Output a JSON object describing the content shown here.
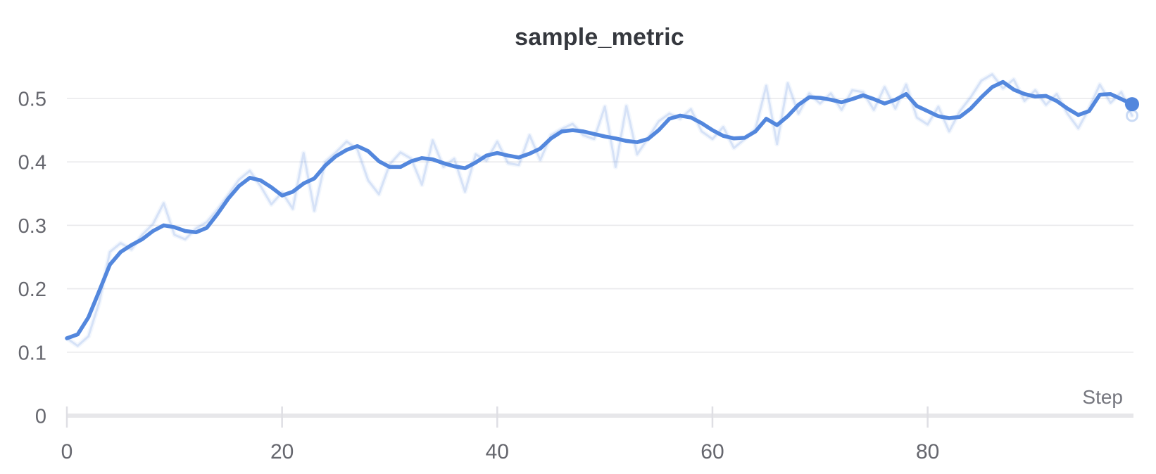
{
  "chart_data": {
    "type": "line",
    "title": "sample_metric",
    "xlabel": "Step",
    "ylabel": "",
    "grid": "horizontal",
    "legend": "none",
    "xlim": [
      0,
      100
    ],
    "ylim": [
      0,
      0.55
    ],
    "xticks": [
      0,
      20,
      40,
      60,
      80
    ],
    "yticks": [
      0,
      0.1,
      0.2,
      0.3,
      0.4,
      0.5
    ],
    "end_point_markers": true,
    "colors": {
      "line": "#5387dd",
      "raw_line_rgba": "83,135,221",
      "raw_opacity": 0.18,
      "grid": "#e9e9ec",
      "axis_bar": "#e7e7ea",
      "tick": "#dfdfe4",
      "tick_label": "#66676e",
      "axis_title": "#75767e",
      "title": "#35383e",
      "background": "#ffffff"
    },
    "x": [
      0,
      1,
      2,
      3,
      4,
      5,
      6,
      7,
      8,
      9,
      10,
      11,
      12,
      13,
      14,
      15,
      16,
      17,
      18,
      19,
      20,
      21,
      22,
      23,
      24,
      25,
      26,
      27,
      28,
      29,
      30,
      31,
      32,
      33,
      34,
      35,
      36,
      37,
      38,
      39,
      40,
      41,
      42,
      43,
      44,
      45,
      46,
      47,
      48,
      49,
      50,
      51,
      52,
      53,
      54,
      55,
      56,
      57,
      58,
      59,
      60,
      61,
      62,
      63,
      64,
      65,
      66,
      67,
      68,
      69,
      70,
      71,
      72,
      73,
      74,
      75,
      76,
      77,
      78,
      79,
      80,
      81,
      82,
      83,
      84,
      85,
      86,
      87,
      88,
      89,
      90,
      91,
      92,
      93,
      94,
      95,
      96,
      97,
      98,
      99
    ],
    "series": [
      {
        "name": "sample_metric (raw)",
        "role": "raw",
        "values": [
          0.122,
          0.11,
          0.125,
          0.178,
          0.258,
          0.272,
          0.262,
          0.285,
          0.302,
          0.335,
          0.285,
          0.278,
          0.295,
          0.305,
          0.325,
          0.348,
          0.372,
          0.386,
          0.362,
          0.333,
          0.352,
          0.326,
          0.414,
          0.323,
          0.4,
          0.415,
          0.432,
          0.42,
          0.371,
          0.349,
          0.396,
          0.415,
          0.405,
          0.364,
          0.434,
          0.392,
          0.405,
          0.353,
          0.412,
          0.402,
          0.432,
          0.398,
          0.395,
          0.442,
          0.403,
          0.442,
          0.452,
          0.46,
          0.442,
          0.436,
          0.487,
          0.392,
          0.488,
          0.412,
          0.437,
          0.464,
          0.476,
          0.468,
          0.483,
          0.448,
          0.436,
          0.455,
          0.422,
          0.436,
          0.452,
          0.52,
          0.428,
          0.524,
          0.476,
          0.508,
          0.492,
          0.508,
          0.482,
          0.513,
          0.51,
          0.482,
          0.518,
          0.484,
          0.522,
          0.47,
          0.459,
          0.487,
          0.448,
          0.48,
          0.502,
          0.528,
          0.538,
          0.516,
          0.53,
          0.496,
          0.513,
          0.49,
          0.507,
          0.476,
          0.453,
          0.484,
          0.522,
          0.493,
          0.51,
          0.473
        ]
      },
      {
        "name": "sample_metric (smoothed)",
        "role": "smoothed",
        "values": [
          0.122,
          0.128,
          0.155,
          0.196,
          0.238,
          0.258,
          0.269,
          0.278,
          0.291,
          0.3,
          0.297,
          0.291,
          0.289,
          0.296,
          0.318,
          0.342,
          0.362,
          0.375,
          0.371,
          0.36,
          0.347,
          0.353,
          0.366,
          0.374,
          0.394,
          0.409,
          0.419,
          0.425,
          0.417,
          0.401,
          0.392,
          0.392,
          0.401,
          0.406,
          0.404,
          0.398,
          0.393,
          0.39,
          0.399,
          0.41,
          0.414,
          0.41,
          0.407,
          0.413,
          0.421,
          0.437,
          0.448,
          0.45,
          0.448,
          0.444,
          0.44,
          0.437,
          0.433,
          0.431,
          0.436,
          0.45,
          0.468,
          0.473,
          0.47,
          0.461,
          0.45,
          0.441,
          0.437,
          0.438,
          0.448,
          0.468,
          0.458,
          0.472,
          0.49,
          0.502,
          0.501,
          0.498,
          0.494,
          0.499,
          0.505,
          0.499,
          0.492,
          0.498,
          0.507,
          0.488,
          0.48,
          0.472,
          0.469,
          0.471,
          0.484,
          0.502,
          0.518,
          0.526,
          0.514,
          0.507,
          0.503,
          0.504,
          0.496,
          0.484,
          0.474,
          0.48,
          0.506,
          0.507,
          0.499,
          0.491
        ]
      }
    ]
  }
}
